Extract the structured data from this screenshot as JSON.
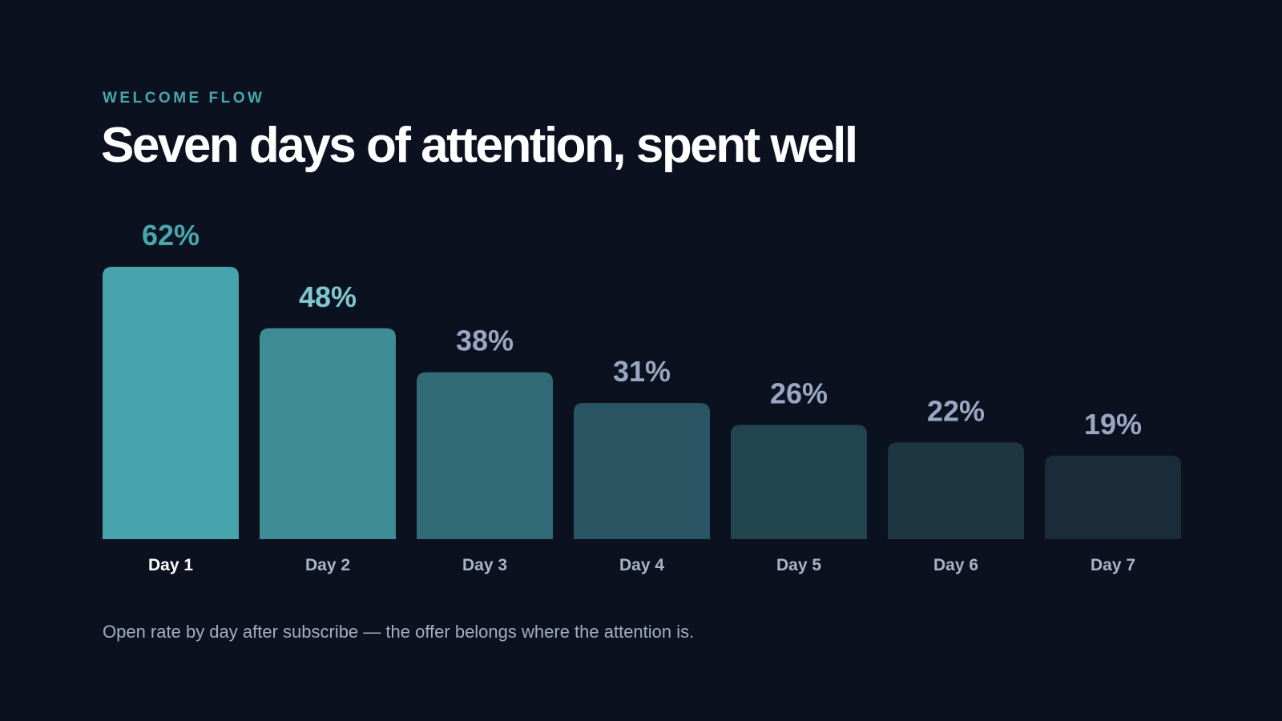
{
  "header": {
    "eyebrow": "WELCOME FLOW",
    "title": "Seven days of attention, spent well"
  },
  "caption": "Open rate by day after subscribe — the offer belongs where the attention is.",
  "colors": {
    "background": "#0c1120",
    "accent": "#48a6ae",
    "value_label_default": "#9aa6c2",
    "value_label_highlight_1": "#48a6ae",
    "value_label_highlight_2": "#7ec8d0",
    "category_label": "#aab4c8",
    "category_label_active": "#ffffff",
    "bar_fills": [
      "#48a4ac",
      "#3e8c94",
      "#316b75",
      "#285561",
      "#22444f",
      "#1d3642",
      "#1a2c3a"
    ]
  },
  "chart_data": {
    "type": "bar",
    "categories": [
      "Day 1",
      "Day 2",
      "Day 3",
      "Day 4",
      "Day 5",
      "Day 6",
      "Day 7"
    ],
    "values": [
      62,
      48,
      38,
      31,
      26,
      22,
      19
    ],
    "value_labels": [
      "62%",
      "48%",
      "38%",
      "31%",
      "26%",
      "22%",
      "19%"
    ],
    "ylim": [
      0,
      62
    ],
    "grid": false,
    "legend": "none"
  }
}
